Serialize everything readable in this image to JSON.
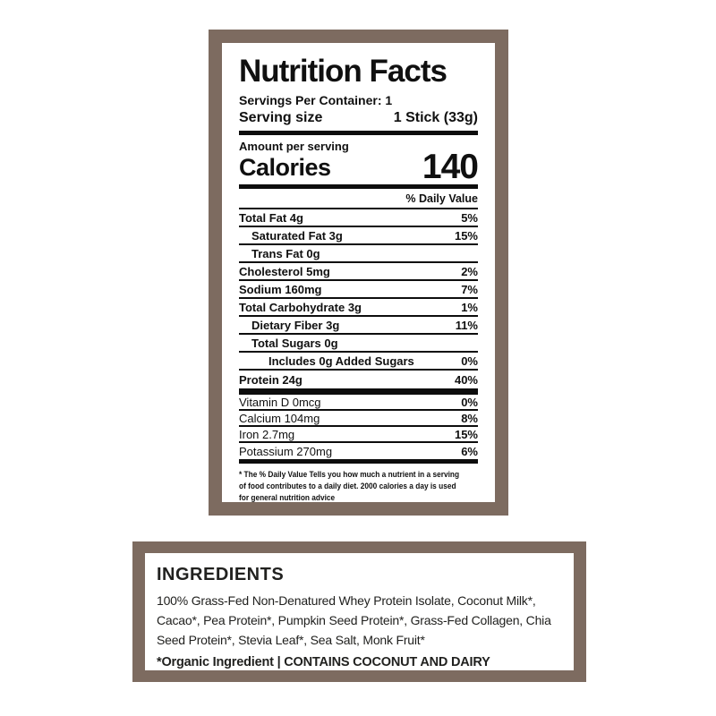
{
  "colors": {
    "frame_brown": "#7d6b60",
    "line_black": "#0d0d0d",
    "background": "#ffffff"
  },
  "nutrition_panel": {
    "title": "Nutrition Facts",
    "servings_per_container": "Servings Per Container: 1",
    "serving_size_label": "Serving size",
    "serving_size_value": "1 Stick (33g)",
    "amount_per_serving": "Amount per serving",
    "calories_label": "Calories",
    "calories_value": "140",
    "daily_value_header": "% Daily Value",
    "rows": [
      {
        "label": "Total Fat 4g",
        "value": "5%",
        "indent": 0
      },
      {
        "label": "Saturated Fat 3g",
        "value": "15%",
        "indent": 1
      },
      {
        "label": "Trans Fat 0g",
        "value": "",
        "indent": 1
      },
      {
        "label": "Cholesterol 5mg",
        "value": "2%",
        "indent": 0
      },
      {
        "label": "Sodium 160mg",
        "value": "7%",
        "indent": 0
      },
      {
        "label": "Total Carbohydrate 3g",
        "value": "1%",
        "indent": 0
      },
      {
        "label": "Dietary Fiber 3g",
        "value": "11%",
        "indent": 1
      },
      {
        "label": "Total Sugars 0g",
        "value": "",
        "indent": 1
      },
      {
        "label": "Includes 0g Added Sugars",
        "value": "0%",
        "indent": 2
      },
      {
        "label": "Protein 24g",
        "value": "40%",
        "indent": 0
      }
    ],
    "vitamin_rows": [
      {
        "label": "Vitamin D 0mcg",
        "value": "0%"
      },
      {
        "label": "Calcium 104mg",
        "value": "8%"
      },
      {
        "label": "Iron 2.7mg",
        "value": "15%"
      },
      {
        "label": "Potassium 270mg",
        "value": "6%"
      }
    ],
    "footnote_lines": [
      "* The % Daily Value Tells you how much a nutrient in a serving",
      "of food contributes to a daily diet. 2000 calories a day is used",
      "for general nutrition advice"
    ]
  },
  "ingredients_panel": {
    "heading": "INGREDIENTS",
    "body_lines": [
      "100% Grass-Fed Non-Denatured Whey Protein Isolate, Coconut Milk*,",
      "Cacao*, Pea Protein*, Pumpkin Seed Protein*, Grass-Fed Collagen, Chia",
      "Seed Protein*, Stevia Leaf*, Sea Salt, Monk Fruit*"
    ],
    "footnote_prefix": "*Organic Ingredient | ",
    "footnote_allergen": "CONTAINS COCONUT AND DAIRY"
  }
}
